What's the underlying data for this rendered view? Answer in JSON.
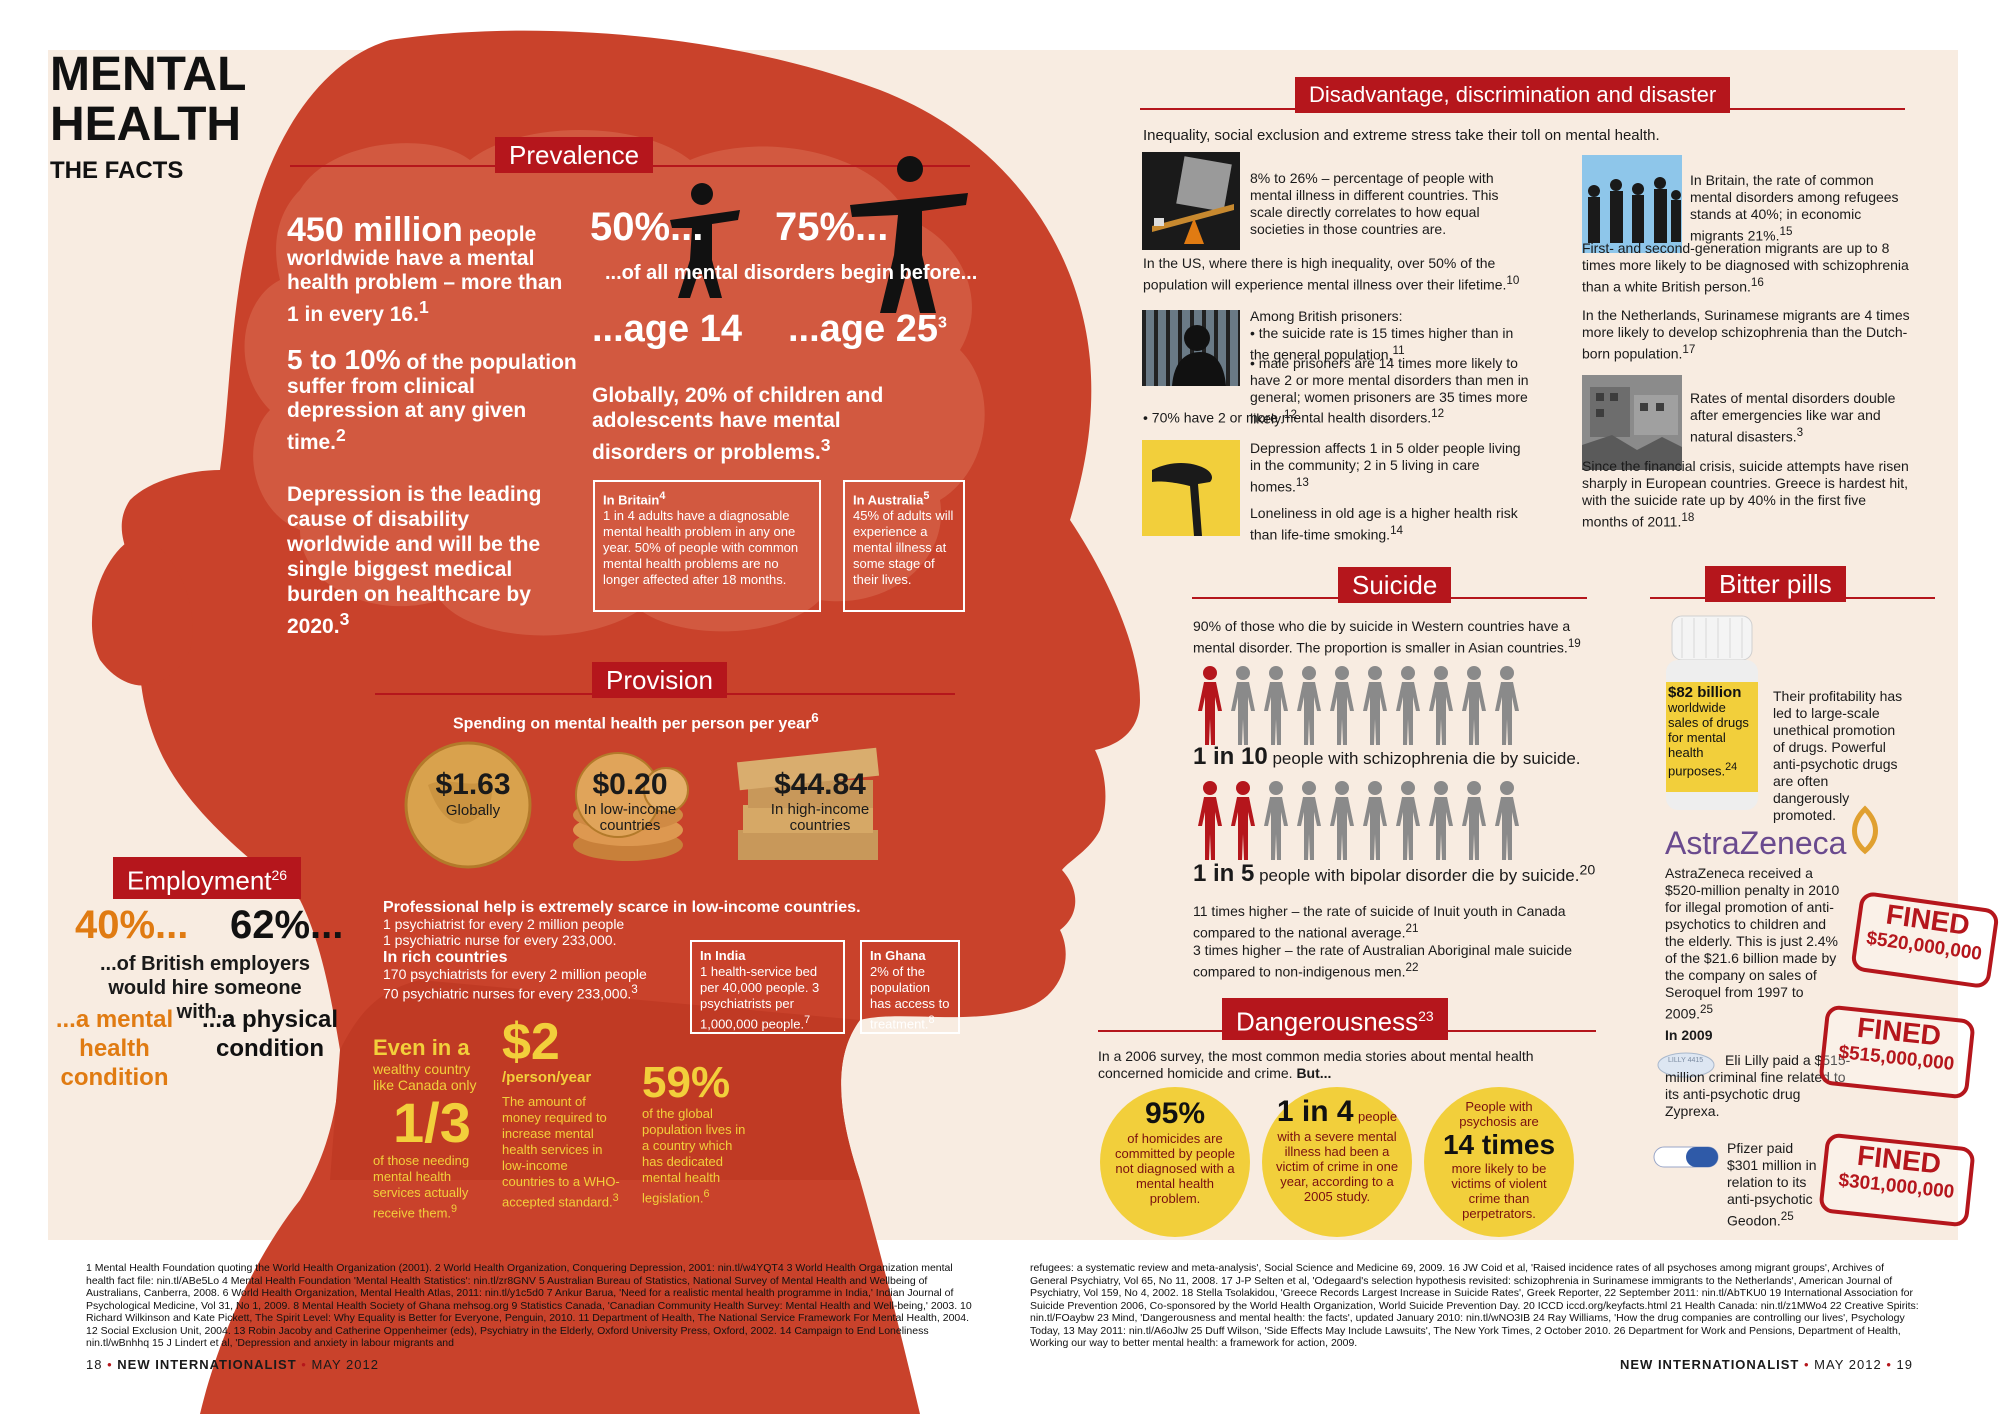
{
  "title": {
    "line1": "MENTAL",
    "line2": "HEALTH",
    "sub": "THE FACTS"
  },
  "colors": {
    "red": "#b5161c",
    "head": "#c9422b",
    "cream": "#f8ece1",
    "yellow": "#f2cf3b",
    "orange": "#e07b12"
  },
  "prevalence": {
    "tab": "Prevalence",
    "s1_big": "450 million",
    "s1_rest": "people worldwide have a mental health problem – more than 1 in every 16.",
    "s1_ref": "1",
    "s2_big": "5 to 10%",
    "s2_rest": "of the population suffer from clinical depression at any given time.",
    "s2_ref": "2",
    "s3": "Depression is the leading cause of disability worldwide and will be the single biggest medical burden on healthcare by 2020.",
    "s3_ref": "3",
    "p50": "50%...",
    "p75": "75%...",
    "begin": "...of all mental disorders begin before...",
    "age14": "...age 14",
    "age25": "...age 25",
    "age25_ref": "3",
    "children": "Globally, 20% of children and adolescents have mental disorders or problems.",
    "children_ref": "3",
    "britain_head": "In Britain",
    "britain_ref": "4",
    "britain_body": "1 in 4 adults have a diagnosable mental health problem in any one year. 50% of people with common mental health problems are no longer affected after 18 months.",
    "australia_head": "In Australia",
    "australia_ref": "5",
    "australia_body": "45% of adults will experience a mental illness at some stage of their lives."
  },
  "provision": {
    "tab": "Provision",
    "spending_title": "Spending on mental health per person per year",
    "spending_ref": "6",
    "coins": [
      {
        "value": "$1.63",
        "label": "Globally"
      },
      {
        "value": "$0.20",
        "label": "In low-income countries"
      },
      {
        "value": "$44.84",
        "label": "In high-income countries"
      }
    ],
    "scarce_head": "Professional help is extremely scarce in low-income countries.",
    "scarce_1": "1 psychiatrist for every 2 million people",
    "scarce_2": "1 psychiatric nurse for every 233,000.",
    "rich_head": "In rich countries",
    "rich_1": "170 psychiatrists for every 2 million people",
    "rich_2": "70 psychiatric nurses for every 233,000.",
    "rich_ref": "3",
    "india_head": "In India",
    "india_body": "1 health-service bed per 40,000 people. 3 psychiatrists per 1,000,000 people.",
    "india_ref": "7",
    "ghana_head": "In Ghana",
    "ghana_body": "2% of the population has access to treatment.",
    "ghana_ref": "8",
    "wealthy_a": "Even in a",
    "wealthy_b": "wealthy country like Canada only",
    "third": "1/3",
    "third_body": "of those needing mental health services actually receive them.",
    "third_ref": "9",
    "two_big": "$2",
    "two_unit": "/person/year",
    "two_body": "The amount of money required to increase mental health services in low-income countries to a WHO-accepted standard.",
    "two_ref": "3",
    "pct59": "59%",
    "pct59_body": "of the global population lives in a country which has dedicated mental health legislation.",
    "pct59_ref": "6"
  },
  "employment": {
    "tab": "Employment",
    "ref": "26",
    "p40": "40%...",
    "p62": "62%...",
    "mid": "...of British employers would hire someone with...",
    "left": "...a mental health condition",
    "right": "...a physical condition"
  },
  "disadvantage": {
    "tab": "Disadvantage, discrimination and disaster",
    "intro": "Inequality, social exclusion and extreme stress take their toll on mental health.",
    "b1": "8% to 26% – percentage of people with mental illness in different countries. This scale directly correlates to how equal societies in those countries are.",
    "b1b": "In the US, where there is high inequality, over 50% of the population will experience mental illness over their lifetime.",
    "b1b_ref": "10",
    "b2_head": "Among British prisoners:",
    "b2_1": "• the suicide rate is 15 times higher than in the general population.",
    "b2_1_ref": "11",
    "b2_2": "• male prisoners are 14 times more likely to have 2 or more mental disorders than men in general; women prisoners are 35 times more likely.",
    "b2_2_ref": "12",
    "b2_3": "• 70% have 2 or more mental health disorders.",
    "b2_3_ref": "12",
    "b3_1": "Depression affects 1 in 5 older people living in the community; 2 in 5 living in care homes.",
    "b3_1_ref": "13",
    "b3_2": "Loneliness in old age is a higher health risk than life-time smoking.",
    "b3_2_ref": "14",
    "r1": "In Britain, the rate of common mental disorders among refugees stands at 40%; in economic migrants 21%.",
    "r1_ref": "15",
    "r1b": "First- and second-generation migrants are up to 8 times more likely to be diagnosed with schizophrenia than a white British person.",
    "r1b_ref": "16",
    "r2": "In the Netherlands, Surinamese migrants are 4 times more likely to develop schizophrenia than the Dutch-born population.",
    "r2_ref": "17",
    "r3": "Rates of mental disorders double after emergencies like war and natural disasters.",
    "r3_ref": "3",
    "r3b": "Since the financial crisis, suicide attempts have risen sharply in European countries. Greece is hardest hit, with the suicide rate up by 40% in the first five months of 2011.",
    "r3b_ref": "18"
  },
  "suicide": {
    "tab": "Suicide",
    "intro": "90% of those who die by suicide in Western countries have a mental disorder. The proportion is smaller in Asian countries.",
    "intro_ref": "19",
    "row1_big": "1 in 10",
    "row1_rest": "people with schizophrenia die by suicide.",
    "row1_red": 1,
    "row2_big": "1 in 5",
    "row2_rest": "people with bipolar disorder die by suicide.",
    "row2_ref": "20",
    "row2_red": 2,
    "figures_per_row": 10,
    "inuit": "11 times higher – the rate of suicide of Inuit youth in Canada compared to the national average.",
    "inuit_ref": "21",
    "aboriginal": "3 times higher – the rate of Australian Aboriginal male suicide compared to non-indigenous men.",
    "aboriginal_ref": "22"
  },
  "danger": {
    "tab": "Dangerousness",
    "ref": "23",
    "intro": "In a 2006 survey, the most common media stories about mental health concerned homicide and crime.",
    "intro_but": "But...",
    "c1_big": "95%",
    "c1_rest": "of homicides are committed by people not diagnosed with a mental health problem.",
    "c2_big": "1 in 4",
    "c2_rest_a": "people",
    "c2_rest": "with a severe mental illness had been a victim of crime in one year, according to a 2005 study.",
    "c3_top": "People with psychosis are",
    "c3_big": "14 times",
    "c3_rest": "more likely to be victims of violent crime than perpetrators."
  },
  "pills": {
    "tab": "Bitter pills",
    "bottle_big": "$82 billion",
    "bottle_rest": "worldwide sales of drugs for mental health purposes.",
    "bottle_ref": "24",
    "profit": "Their profitability has led to large-scale unethical promotion of drugs. Powerful anti-psychotic drugs are often dangerously promoted.",
    "az_logo": "AstraZeneca",
    "az_text": "AstraZeneca received a $520-million penalty in 2010 for illegal promotion of anti-psychotics to children and the elderly. This is just 2.4% of the $21.6 billion made by the company on sales of Seroquel from 1997 to 2009.",
    "az_ref": "25",
    "stamp1_a": "FINED",
    "stamp1_b": "$520,000,000",
    "y2009": "In 2009",
    "lilly": "Eli Lilly paid a $515-million criminal fine related to its anti-psychotic drug Zyprexa.",
    "stamp2_a": "FINED",
    "stamp2_b": "$515,000,000",
    "pfizer": "Pfizer paid $301 million in relation to its anti-psychotic Geodon.",
    "pfizer_ref": "25",
    "stamp3_a": "FINED",
    "stamp3_b": "$301,000,000",
    "lilly_pill": "LILLY 4415"
  },
  "footnotes": {
    "left": "1 Mental Health Foundation quoting the World Health Organization (2001). 2 World Health Organization, Conquering Depression, 2001: nin.tl/w4YQT4 3 World Health Organization mental health fact file: nin.tl/ABe5Lo 4 Mental Health Foundation 'Mental Health Statistics': nin.tl/zr8GNV 5 Australian Bureau of Statistics, National Survey of Mental Health and Wellbeing of Australians, Canberra, 2008. 6 World Health Organization, Mental Health Atlas, 2011: nin.tl/y1c5d0 7 Ankur Barua, 'Need for a realistic mental health programme in India,' Indian Journal of Psychological Medicine, Vol 31, No 1, 2009. 8 Mental Health Society of Ghana mehsog.org 9 Statistics Canada, 'Canadian Community Health Survey: Mental Health and Well-being,' 2003. 10 Richard Wilkinson and Kate Pickett, The Spirit Level: Why Equality is Better for Everyone, Penguin, 2010. 11 Department of Health, The National Service Framework For Mental Health, 2004. 12 Social Exclusion Unit, 2004. 13 Robin Jacoby and Catherine Oppenheimer (eds), Psychiatry in the Elderly, Oxford University Press, Oxford, 2002. 14 Campaign to End Loneliness nin.tl/wBnhhq 15 J Lindert et al, 'Depression and anxiety in labour migrants and",
    "right": "refugees: a systematic review and meta-analysis', Social Science and Medicine 69, 2009. 16 JW Coid et al, 'Raised incidence rates of all psychoses among migrant groups', Archives of General Psychiatry, Vol 65, No 11, 2008. 17 J-P Selten et al, 'Odegaard's selection hypothesis revisited: schizophrenia in Surinamese immigrants to the Netherlands', American Journal of Psychiatry, Vol 159, No 4, 2002. 18 Stella Tsolakidou, 'Greece Records Largest Increase in Suicide Rates', Greek Reporter, 22 September 2011: nin.tl/AbTKU0 19 International Association for Suicide Prevention 2006, Co-sponsored by the World Health Organization, World Suicide Prevention Day. 20 ICCD iccd.org/keyfacts.html 21 Health Canada: nin.tl/z1MWo4 22 Creative Spirits: nin.tl/FOaybw 23 Mind, 'Dangerousness and mental health: the facts', updated January 2010: nin.tl/wNO3IB 24 Ray Williams, 'How the drug companies are controlling our lives', Psychology Today, 13 May 2011: nin.tl/A6oJlw 25 Duff Wilson, 'Side Effects May Include Lawsuits', The New York Times, 2 October 2010. 26 Department for Work and Pensions, Department of Health, Working our way to better mental health: a framework for action, 2009."
  },
  "folio": {
    "left_num": "18",
    "left_mag": "NEW INTERNATIONALIST",
    "left_date": "MAY 2012",
    "right_mag": "NEW INTERNATIONALIST",
    "right_date": "MAY 2012",
    "right_num": "19"
  }
}
